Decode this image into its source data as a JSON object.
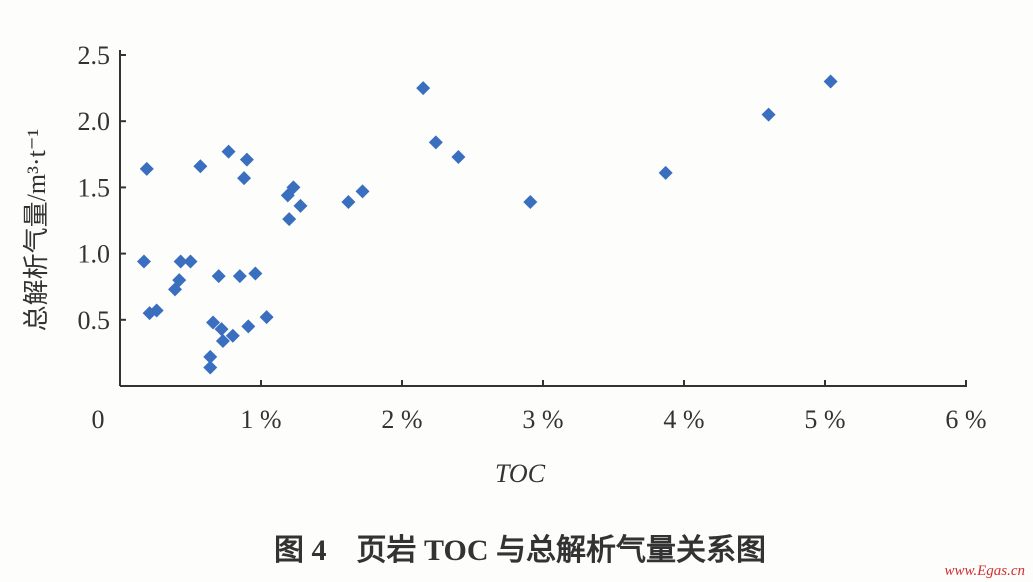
{
  "chart_data": {
    "type": "scatter",
    "title": "图 4　页岩 TOC 与总解析气量关系图",
    "xlabel": "TOC",
    "ylabel": "总解析气量/m³·t⁻¹",
    "xlim": [
      0,
      6
    ],
    "ylim": [
      0,
      2.5
    ],
    "x_ticks": [
      "0",
      "1 %",
      "2 %",
      "3 %",
      "4 %",
      "5 %",
      "6 %"
    ],
    "y_ticks": [
      "0.5",
      "1.0",
      "1.5",
      "2.0",
      "2.5"
    ],
    "grid": false,
    "marker": "diamond",
    "color": "#3a6fc0",
    "points": [
      [
        0.19,
        1.64
      ],
      [
        0.17,
        0.94
      ],
      [
        0.21,
        0.55
      ],
      [
        0.26,
        0.57
      ],
      [
        0.39,
        0.73
      ],
      [
        0.42,
        0.8
      ],
      [
        0.43,
        0.94
      ],
      [
        0.5,
        0.94
      ],
      [
        0.57,
        1.66
      ],
      [
        0.77,
        1.77
      ],
      [
        0.9,
        1.71
      ],
      [
        0.88,
        1.57
      ],
      [
        0.7,
        0.83
      ],
      [
        0.85,
        0.83
      ],
      [
        0.96,
        0.85
      ],
      [
        0.66,
        0.48
      ],
      [
        0.72,
        0.43
      ],
      [
        0.73,
        0.34
      ],
      [
        0.8,
        0.38
      ],
      [
        0.91,
        0.45
      ],
      [
        1.04,
        0.52
      ],
      [
        0.64,
        0.22
      ],
      [
        0.64,
        0.14
      ],
      [
        1.19,
        1.44
      ],
      [
        1.23,
        1.5
      ],
      [
        1.28,
        1.36
      ],
      [
        1.2,
        1.26
      ],
      [
        1.62,
        1.39
      ],
      [
        1.72,
        1.47
      ],
      [
        2.15,
        2.25
      ],
      [
        2.24,
        1.84
      ],
      [
        2.4,
        1.73
      ],
      [
        2.91,
        1.39
      ],
      [
        3.87,
        1.61
      ],
      [
        4.6,
        2.05
      ],
      [
        5.04,
        2.3
      ]
    ]
  },
  "watermark": "www.Egas.cn"
}
